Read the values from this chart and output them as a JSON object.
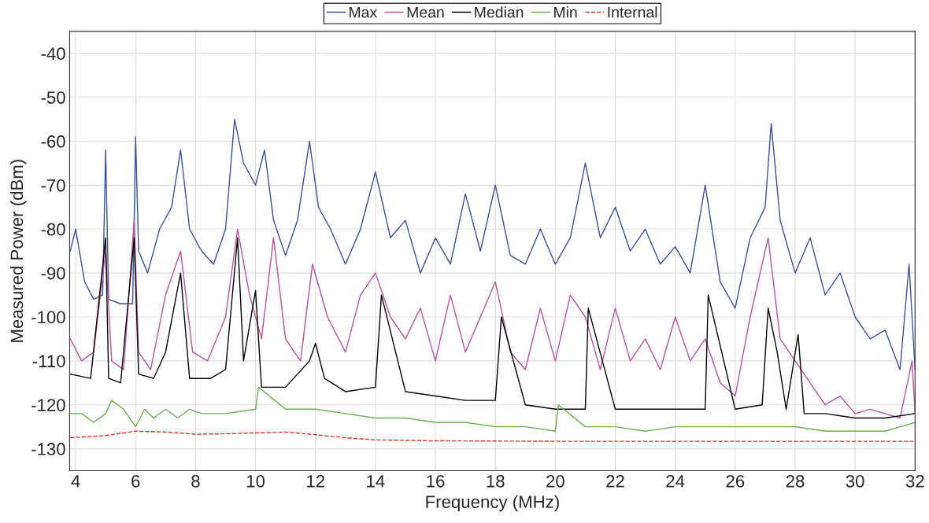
{
  "chart_data": {
    "type": "line",
    "xlabel": "Frequency (MHz)",
    "ylabel": "Measured Power (dBm)",
    "xlim": [
      3.8,
      32
    ],
    "xticks": [
      4,
      6,
      8,
      10,
      12,
      14,
      16,
      18,
      20,
      22,
      24,
      26,
      28,
      30,
      32
    ],
    "ylim": [
      -135,
      -35
    ],
    "yticks": [
      -130,
      -120,
      -110,
      -100,
      -90,
      -80,
      -70,
      -60,
      -50,
      -40
    ],
    "grid": true,
    "legend": "top",
    "marker": "none",
    "series": [
      {
        "name": "Max",
        "color": "#3a4fa0",
        "line_style": "solid",
        "x": [
          3.82,
          4.0,
          4.3,
          4.6,
          4.9,
          5.0,
          5.1,
          5.5,
          5.9,
          6.0,
          6.1,
          6.4,
          6.8,
          7.2,
          7.5,
          7.8,
          8.2,
          8.6,
          9.0,
          9.3,
          9.6,
          10.0,
          10.3,
          10.6,
          11.0,
          11.4,
          11.8,
          12.1,
          12.5,
          13.0,
          13.5,
          14.0,
          14.5,
          15.0,
          15.5,
          16.0,
          16.5,
          17.0,
          17.5,
          18.0,
          18.5,
          19.0,
          19.5,
          20.0,
          20.5,
          21.0,
          21.5,
          22.0,
          22.5,
          23.0,
          23.5,
          24.0,
          24.5,
          25.0,
          25.5,
          26.0,
          26.5,
          27.0,
          27.2,
          27.5,
          28.0,
          28.5,
          29.0,
          29.5,
          30.0,
          30.5,
          31.0,
          31.5,
          31.8,
          32.0
        ],
        "values": [
          -85,
          -80,
          -92,
          -96,
          -95,
          -62,
          -96,
          -97,
          -97,
          -59,
          -85,
          -90,
          -80,
          -75,
          -62,
          -80,
          -85,
          -88,
          -80,
          -55,
          -65,
          -70,
          -62,
          -78,
          -86,
          -78,
          -60,
          -75,
          -80,
          -88,
          -80,
          -67,
          -82,
          -78,
          -90,
          -82,
          -88,
          -72,
          -85,
          -70,
          -86,
          -88,
          -80,
          -88,
          -82,
          -65,
          -82,
          -75,
          -85,
          -80,
          -88,
          -84,
          -90,
          -70,
          -92,
          -98,
          -82,
          -75,
          -56,
          -78,
          -90,
          -82,
          -95,
          -90,
          -100,
          -105,
          -103,
          -112,
          -88,
          -112
        ]
      },
      {
        "name": "Mean",
        "color": "#c0509a",
        "line_style": "solid",
        "x": [
          3.82,
          4.2,
          4.6,
          5.0,
          5.2,
          5.6,
          5.95,
          6.1,
          6.5,
          7.0,
          7.5,
          7.9,
          8.4,
          9.0,
          9.4,
          9.8,
          10.2,
          10.6,
          11.0,
          11.5,
          11.9,
          12.4,
          13.0,
          13.5,
          14.0,
          14.5,
          15.0,
          15.5,
          16.0,
          16.5,
          17.0,
          17.5,
          18.0,
          18.5,
          19.0,
          19.5,
          20.0,
          20.5,
          21.0,
          21.5,
          22.0,
          22.5,
          23.0,
          23.5,
          24.0,
          24.5,
          25.0,
          25.5,
          26.0,
          26.5,
          27.1,
          27.5,
          28.0,
          28.5,
          29.0,
          29.5,
          30.0,
          30.5,
          31.0,
          31.5,
          31.9,
          32.0
        ],
        "values": [
          -105,
          -110,
          -108,
          -85,
          -110,
          -112,
          -78,
          -108,
          -112,
          -95,
          -85,
          -108,
          -110,
          -100,
          -80,
          -95,
          -105,
          -82,
          -105,
          -110,
          -88,
          -100,
          -108,
          -95,
          -90,
          -100,
          -105,
          -98,
          -110,
          -95,
          -108,
          -100,
          -92,
          -108,
          -112,
          -98,
          -110,
          -95,
          -100,
          -112,
          -98,
          -110,
          -105,
          -112,
          -100,
          -110,
          -105,
          -115,
          -118,
          -100,
          -82,
          -105,
          -110,
          -115,
          -120,
          -118,
          -122,
          -121,
          -122,
          -123,
          -110,
          -122
        ]
      },
      {
        "name": "Median",
        "color": "#000000",
        "line_style": "solid",
        "x": [
          3.82,
          4.5,
          5.0,
          5.1,
          5.5,
          5.95,
          6.1,
          6.6,
          7.0,
          7.5,
          7.8,
          8.5,
          9.0,
          9.4,
          9.6,
          10.0,
          10.2,
          11.0,
          11.8,
          12.0,
          12.3,
          13.0,
          14.0,
          14.2,
          15.0,
          16.0,
          17.0,
          18.0,
          18.2,
          19.0,
          20.0,
          21.0,
          21.1,
          22.0,
          23.0,
          24.0,
          25.0,
          25.1,
          26.0,
          26.9,
          27.1,
          27.4,
          27.7,
          28.1,
          28.3,
          29.0,
          30.0,
          31.0,
          32.0
        ],
        "values": [
          -113,
          -114,
          -82,
          -114,
          -115,
          -82,
          -113,
          -114,
          -108,
          -90,
          -114,
          -114,
          -112,
          -82,
          -110,
          -94,
          -116,
          -116,
          -110,
          -106,
          -114,
          -117,
          -116,
          -95,
          -117,
          -118,
          -119,
          -119,
          -100,
          -120,
          -121,
          -121,
          -98,
          -121,
          -121,
          -121,
          -121,
          -95,
          -121,
          -120,
          -98,
          -108,
          -121,
          -104,
          -122,
          -122,
          -123,
          -123,
          -122
        ]
      },
      {
        "name": "Min",
        "color": "#6ab04c",
        "line_style": "solid",
        "x": [
          3.82,
          4.2,
          4.6,
          5.0,
          5.2,
          5.6,
          6.0,
          6.3,
          6.6,
          7.0,
          7.4,
          7.8,
          8.2,
          9.0,
          10.0,
          10.1,
          11.0,
          12.0,
          13.0,
          14.0,
          15.0,
          16.0,
          17.0,
          18.0,
          19.0,
          20.0,
          20.1,
          21.0,
          22.0,
          23.0,
          24.0,
          25.0,
          26.0,
          27.0,
          28.0,
          29.0,
          30.0,
          31.0,
          32.0
        ],
        "values": [
          -122,
          -122,
          -124,
          -122,
          -119,
          -121,
          -125,
          -121,
          -123,
          -121,
          -123,
          -121,
          -122,
          -122,
          -121,
          -116,
          -121,
          -121,
          -122,
          -123,
          -123,
          -124,
          -124,
          -125,
          -125,
          -126,
          -120,
          -125,
          -125,
          -126,
          -125,
          -125,
          -125,
          -125,
          -125,
          -126,
          -126,
          -126,
          -124
        ]
      },
      {
        "name": "Internal",
        "color": "#e03020",
        "line_style": "dashed",
        "x": [
          3.82,
          5.0,
          6.0,
          7.0,
          8.0,
          9.0,
          10.0,
          11.0,
          12.0,
          13.0,
          14.0,
          16.0,
          20.0,
          24.0,
          28.0,
          32.0
        ],
        "values": [
          -127.5,
          -127,
          -126,
          -126.2,
          -126.7,
          -126.6,
          -126.4,
          -126.2,
          -126.8,
          -127.5,
          -128,
          -128.2,
          -128.3,
          -128.3,
          -128.3,
          -128.3
        ]
      }
    ]
  }
}
